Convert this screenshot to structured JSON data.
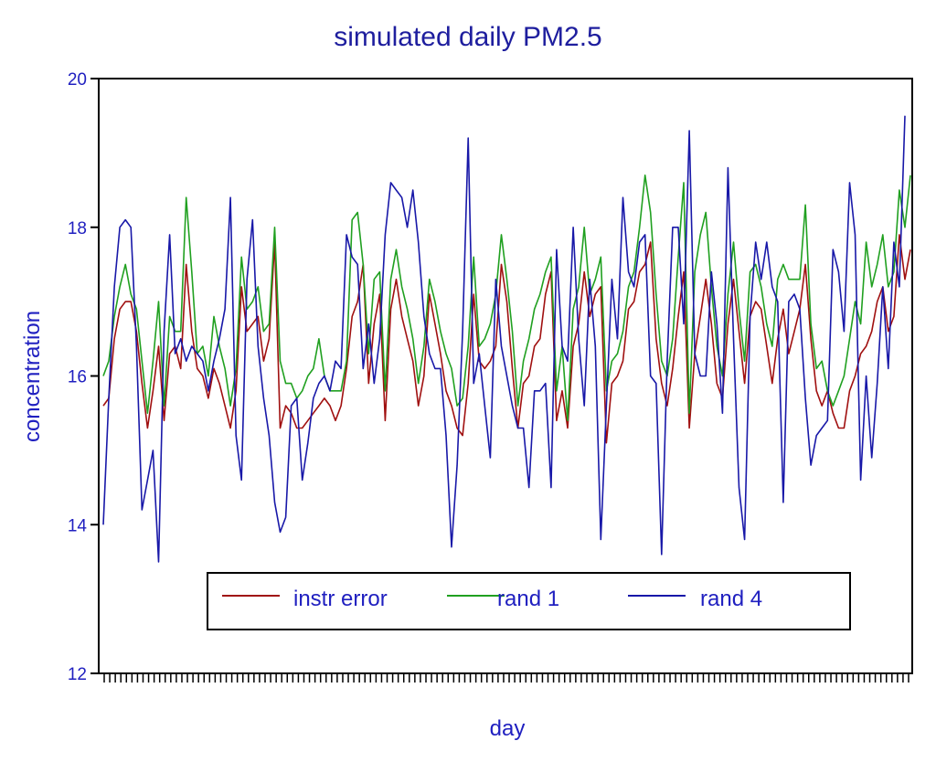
{
  "chart_data": {
    "type": "line",
    "title": "simulated daily PM2.5",
    "xlabel": "day",
    "ylabel": "concentration",
    "ylim": [
      12,
      20
    ],
    "yticks": [
      12,
      14,
      16,
      18,
      20
    ],
    "x_tick_count": 146,
    "legend": {
      "placement": "bottom-center",
      "boxed": true
    },
    "grid": false,
    "series": [
      {
        "name": "instr error",
        "color": "#a01010",
        "values": [
          15.6,
          15.7,
          16.5,
          16.9,
          17.0,
          17.0,
          16.6,
          15.9,
          15.3,
          15.8,
          16.4,
          15.4,
          16.3,
          16.4,
          16.1,
          17.5,
          16.6,
          16.1,
          16.0,
          15.7,
          16.1,
          15.9,
          15.6,
          15.3,
          15.8,
          17.2,
          16.6,
          16.7,
          16.8,
          16.2,
          16.5,
          17.8,
          15.3,
          15.6,
          15.5,
          15.3,
          15.3,
          15.4,
          15.5,
          15.6,
          15.7,
          15.6,
          15.4,
          15.6,
          16.1,
          16.8,
          17.0,
          17.5,
          15.9,
          16.7,
          17.1,
          15.4,
          16.9,
          17.3,
          16.8,
          16.5,
          16.2,
          15.6,
          16.0,
          17.1,
          16.7,
          16.3,
          15.8,
          15.6,
          15.3,
          15.2,
          15.9,
          17.1,
          16.2,
          16.1,
          16.2,
          16.4,
          17.5,
          17.0,
          16.1,
          15.3,
          15.9,
          16.0,
          16.4,
          16.5,
          17.1,
          17.4,
          15.4,
          15.8,
          15.3,
          16.4,
          16.7,
          17.4,
          16.8,
          17.1,
          17.2,
          15.1,
          15.9,
          16.0,
          16.2,
          16.9,
          17.0,
          17.4,
          17.5,
          17.8,
          16.5,
          15.9,
          15.6,
          16.1,
          16.8,
          17.4,
          15.3,
          16.3,
          16.8,
          17.3,
          16.7,
          15.9,
          15.7,
          16.7,
          17.3,
          16.6,
          15.9,
          16.8,
          17.0,
          16.9,
          16.4,
          15.9,
          16.5,
          16.9,
          16.3,
          16.6,
          16.9,
          17.5,
          16.5,
          15.8,
          15.6,
          15.8,
          15.5,
          15.3,
          15.3,
          15.8,
          16.0,
          16.3,
          16.4,
          16.6,
          17.0,
          17.2,
          16.6,
          16.8,
          17.9,
          17.3,
          17.7
        ]
      },
      {
        "name": "rand 1",
        "color": "#20a020",
        "values": [
          16.0,
          16.2,
          16.8,
          17.2,
          17.5,
          17.1,
          16.9,
          16.2,
          15.5,
          16.2,
          17.0,
          15.6,
          16.8,
          16.6,
          16.6,
          18.4,
          17.4,
          16.3,
          16.4,
          16.0,
          16.8,
          16.4,
          16.1,
          15.6,
          16.1,
          17.6,
          16.9,
          17.0,
          17.2,
          16.6,
          16.7,
          18.0,
          16.2,
          15.9,
          15.9,
          15.7,
          15.8,
          16.0,
          16.1,
          16.5,
          16.0,
          15.8,
          15.8,
          15.8,
          16.2,
          18.1,
          18.2,
          17.5,
          16.3,
          17.3,
          17.4,
          15.8,
          17.3,
          17.7,
          17.2,
          16.9,
          16.5,
          15.9,
          16.4,
          17.3,
          17.0,
          16.6,
          16.3,
          16.1,
          15.6,
          15.7,
          16.4,
          17.6,
          16.4,
          16.5,
          16.7,
          17.1,
          17.9,
          17.3,
          16.6,
          15.6,
          16.2,
          16.5,
          16.9,
          17.1,
          17.4,
          17.6,
          15.8,
          16.4,
          15.4,
          16.9,
          17.2,
          18.0,
          17.1,
          17.3,
          17.6,
          15.8,
          16.2,
          16.3,
          16.6,
          17.2,
          17.4,
          18.0,
          18.7,
          18.2,
          17.1,
          16.2,
          16.0,
          16.5,
          17.6,
          18.6,
          15.5,
          17.4,
          17.9,
          18.2,
          17.2,
          16.4,
          16.0,
          17.1,
          17.8,
          16.9,
          16.2,
          17.4,
          17.5,
          17.2,
          16.7,
          16.4,
          17.3,
          17.5,
          17.3,
          17.3,
          17.3,
          18.3,
          16.7,
          16.1,
          16.2,
          15.8,
          15.6,
          15.8,
          16.0,
          16.5,
          17.0,
          16.7,
          17.8,
          17.2,
          17.5,
          17.9,
          17.2,
          17.4,
          18.5,
          18.0,
          18.7
        ]
      },
      {
        "name": "rand 4",
        "color": "#1818a8",
        "values": [
          14.0,
          15.7,
          17.2,
          18.0,
          18.1,
          18.0,
          16.4,
          14.2,
          14.6,
          15.0,
          13.5,
          16.6,
          17.9,
          16.3,
          16.5,
          16.2,
          16.4,
          16.3,
          16.2,
          15.8,
          16.2,
          16.5,
          16.9,
          18.4,
          15.2,
          14.6,
          17.3,
          18.1,
          16.4,
          15.7,
          15.2,
          14.3,
          13.9,
          14.1,
          15.6,
          15.7,
          14.6,
          15.1,
          15.7,
          15.9,
          16.0,
          15.8,
          16.2,
          16.1,
          17.9,
          17.6,
          17.5,
          16.1,
          16.7,
          15.9,
          16.5,
          17.9,
          18.6,
          18.5,
          18.4,
          18.0,
          18.5,
          17.8,
          16.8,
          16.3,
          16.1,
          16.1,
          15.2,
          13.7,
          14.8,
          16.6,
          19.2,
          15.9,
          16.3,
          15.6,
          14.9,
          17.3,
          16.4,
          16.0,
          15.6,
          15.3,
          15.3,
          14.5,
          15.8,
          15.8,
          15.9,
          14.5,
          17.7,
          16.4,
          16.2,
          18.0,
          16.5,
          15.6,
          17.3,
          16.4,
          13.8,
          15.6,
          17.3,
          16.5,
          18.4,
          17.4,
          17.2,
          17.8,
          17.9,
          16.0,
          15.9,
          13.6,
          16.2,
          18.0,
          18.0,
          16.7,
          19.3,
          16.3,
          16.0,
          16.0,
          17.4,
          16.7,
          15.5,
          18.8,
          16.5,
          14.5,
          13.8,
          16.8,
          17.8,
          17.3,
          17.8,
          17.2,
          17.0,
          14.3,
          17.0,
          17.1,
          16.9,
          15.7,
          14.8,
          15.2,
          15.3,
          15.4,
          17.7,
          17.4,
          16.6,
          18.6,
          17.9,
          14.6,
          16.0,
          14.9,
          15.9,
          17.2,
          16.1,
          17.8,
          17.2,
          19.5
        ]
      }
    ]
  }
}
